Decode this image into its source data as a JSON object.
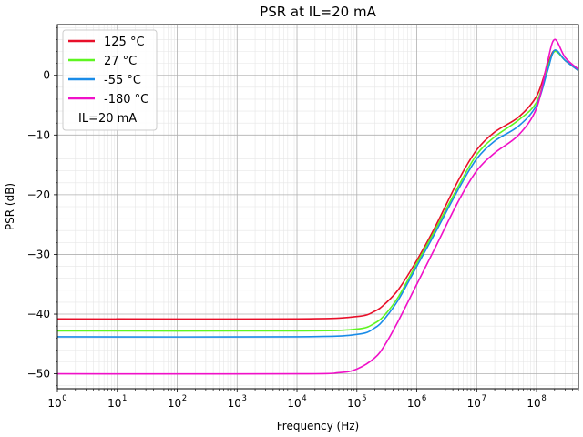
{
  "chart_data": {
    "type": "line",
    "title": "PSR at IL=20 mA",
    "xlabel": "Frequency (Hz)",
    "ylabel": "PSR (dB)",
    "xscale": "log",
    "xlim": [
      1,
      500000000
    ],
    "ylim": [
      -52.5,
      8.5
    ],
    "grid": true,
    "legend_position": "top-left",
    "legend_note": "IL=20 mA",
    "x_ticks": [
      1,
      10,
      100,
      1000,
      10000,
      100000,
      1000000,
      10000000,
      100000000
    ],
    "x_tick_labels": [
      {
        "base": "10",
        "exp": "0"
      },
      {
        "base": "10",
        "exp": "1"
      },
      {
        "base": "10",
        "exp": "2"
      },
      {
        "base": "10",
        "exp": "3"
      },
      {
        "base": "10",
        "exp": "4"
      },
      {
        "base": "10",
        "exp": "5"
      },
      {
        "base": "10",
        "exp": "6"
      },
      {
        "base": "10",
        "exp": "7"
      },
      {
        "base": "10",
        "exp": "8"
      }
    ],
    "y_ticks": [
      -50,
      -40,
      -30,
      -20,
      -10,
      0
    ],
    "y_tick_labels": [
      "−50",
      "−40",
      "−30",
      "−20",
      "−10",
      "0"
    ],
    "series": [
      {
        "name": "125 °C",
        "color": "#e8102a",
        "x": [
          1,
          10000,
          100000,
          200000,
          300000,
          500000,
          1000000,
          2000000,
          5000000,
          10000000,
          20000000,
          50000000,
          100000000,
          150000000,
          200000000,
          300000000,
          500000000
        ],
        "y": [
          -40.8,
          -40.8,
          -40.4,
          -39.5,
          -38.2,
          -35.8,
          -31.0,
          -25.5,
          -17.5,
          -12.5,
          -9.5,
          -7.0,
          -3.5,
          1.5,
          4.2,
          2.5,
          0.8
        ]
      },
      {
        "name": "27 °C",
        "color": "#5ef520",
        "x": [
          1,
          10000,
          100000,
          200000,
          300000,
          500000,
          1000000,
          2000000,
          5000000,
          10000000,
          20000000,
          50000000,
          100000000,
          150000000,
          200000000,
          300000000,
          500000000
        ],
        "y": [
          -42.8,
          -42.8,
          -42.5,
          -41.5,
          -40.0,
          -37.0,
          -31.5,
          -26.0,
          -18.5,
          -13.3,
          -10.3,
          -7.5,
          -4.5,
          1.0,
          4.0,
          2.5,
          0.8
        ]
      },
      {
        "name": "-55 °C",
        "color": "#1a8ce8",
        "x": [
          1,
          10000,
          100000,
          200000,
          300000,
          500000,
          1000000,
          2000000,
          5000000,
          10000000,
          20000000,
          50000000,
          100000000,
          150000000,
          200000000,
          300000000,
          500000000
        ],
        "y": [
          -43.8,
          -43.8,
          -43.4,
          -42.3,
          -40.6,
          -37.5,
          -32.0,
          -26.5,
          -19.0,
          -14.0,
          -11.0,
          -8.5,
          -5.0,
          0.5,
          4.2,
          2.5,
          0.8
        ]
      },
      {
        "name": "-180 °C",
        "color": "#f010c8",
        "x": [
          1,
          10000,
          50000,
          100000,
          200000,
          300000,
          500000,
          1000000,
          2000000,
          5000000,
          10000000,
          20000000,
          50000000,
          100000000,
          150000000,
          200000000,
          300000000,
          500000000
        ],
        "y": [
          -50.0,
          -50.0,
          -49.8,
          -49.2,
          -47.3,
          -45.0,
          -41.0,
          -35.0,
          -29.0,
          -21.0,
          -16.0,
          -13.0,
          -10.0,
          -5.5,
          2.0,
          6.0,
          3.0,
          1.0
        ]
      }
    ]
  }
}
